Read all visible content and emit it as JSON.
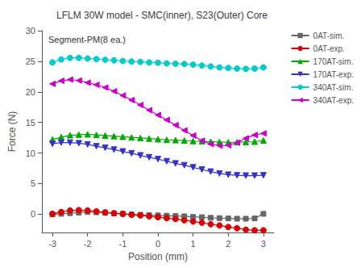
{
  "chart_data": {
    "type": "line",
    "title": "LFLM 30W model - SMC(inner), S23(Outer) Core",
    "xlabel": "Position (mm)",
    "ylabel": "Force (N)",
    "annotation": "Segment-PM(8 ea.)",
    "xlim": [
      -3.3,
      3.3
    ],
    "ylim": [
      -3,
      30
    ],
    "xticks": [
      -3,
      -2,
      -1,
      0,
      1,
      2,
      3
    ],
    "yticks": [
      0,
      5,
      10,
      15,
      20,
      25,
      30
    ],
    "grid": false,
    "legend": "right",
    "x": [
      -3.0,
      -2.75,
      -2.5,
      -2.25,
      -2.0,
      -1.75,
      -1.5,
      -1.25,
      -1.0,
      -0.75,
      -0.5,
      -0.25,
      0.0,
      0.25,
      0.5,
      0.75,
      1.0,
      1.25,
      1.5,
      1.75,
      2.0,
      2.25,
      2.5,
      2.75,
      3.0
    ],
    "series": [
      {
        "name": "0AT-sim.",
        "color": "#666666",
        "marker": "square",
        "values": [
          -0.05,
          0.05,
          0.15,
          0.25,
          0.35,
          0.3,
          0.2,
          0.1,
          0.05,
          -0.05,
          -0.1,
          -0.15,
          -0.2,
          -0.25,
          -0.3,
          -0.35,
          -0.45,
          -0.5,
          -0.6,
          -0.65,
          -0.7,
          -0.75,
          -0.75,
          -0.7,
          0.05
        ]
      },
      {
        "name": "0AT-exp.",
        "color": "#dd0000",
        "marker": "circle",
        "values": [
          0.05,
          0.35,
          0.6,
          0.65,
          0.6,
          0.45,
          0.3,
          0.15,
          0.05,
          -0.1,
          -0.2,
          -0.35,
          -0.5,
          -0.65,
          -0.8,
          -1.0,
          -1.2,
          -1.4,
          -1.65,
          -1.85,
          -2.1,
          -2.3,
          -2.55,
          -2.65,
          -2.65
        ]
      },
      {
        "name": "170AT-sim.",
        "color": "#00aa00",
        "marker": "triangle-up",
        "values": [
          12.2,
          12.6,
          12.9,
          13.0,
          13.05,
          12.95,
          12.85,
          12.75,
          12.65,
          12.55,
          12.45,
          12.35,
          12.25,
          12.15,
          12.1,
          12.05,
          11.95,
          11.9,
          11.85,
          11.8,
          11.75,
          11.75,
          11.8,
          11.85,
          12.05
        ]
      },
      {
        "name": "170AT-exp.",
        "color": "#3333cc",
        "marker": "triangle-down",
        "values": [
          11.5,
          11.7,
          11.7,
          11.6,
          11.4,
          11.1,
          10.85,
          10.55,
          10.25,
          9.95,
          9.6,
          9.3,
          9.0,
          8.65,
          8.3,
          8.0,
          7.65,
          7.3,
          6.95,
          6.65,
          6.45,
          6.35,
          6.3,
          6.3,
          6.35
        ]
      },
      {
        "name": "340AT-sim.",
        "color": "#00cccc",
        "marker": "circle",
        "values": [
          24.8,
          25.3,
          25.55,
          25.55,
          25.45,
          25.35,
          25.25,
          25.15,
          25.05,
          24.95,
          24.9,
          24.8,
          24.75,
          24.65,
          24.6,
          24.55,
          24.45,
          24.3,
          24.15,
          24.0,
          23.9,
          23.8,
          23.75,
          23.8,
          24.0
        ]
      },
      {
        "name": "340AT-exp.",
        "color": "#cc00cc",
        "marker": "triangle-left",
        "values": [
          21.3,
          21.8,
          22.0,
          21.85,
          21.5,
          21.15,
          20.7,
          20.1,
          19.4,
          18.65,
          17.85,
          17.0,
          16.2,
          15.4,
          14.55,
          13.7,
          12.85,
          12.0,
          11.45,
          11.2,
          11.25,
          11.7,
          12.4,
          12.95,
          13.2
        ]
      }
    ]
  }
}
